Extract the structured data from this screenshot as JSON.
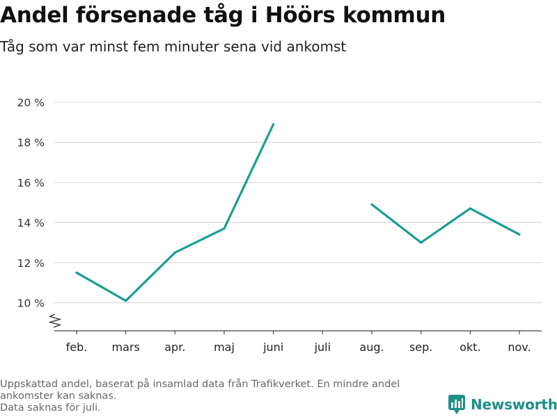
{
  "header": {
    "title": "Andel försenade tåg i Höörs kommun",
    "subtitle": "Tåg som var minst fem minuter sena vid ankomst"
  },
  "chart_data": {
    "type": "line",
    "title": "Andel försenade tåg i Höörs kommun",
    "subtitle": "Tåg som var minst fem minuter sena vid ankomst",
    "categories": [
      "feb.",
      "mars",
      "apr.",
      "maj",
      "juni",
      "juli",
      "aug.",
      "sep.",
      "okt.",
      "nov."
    ],
    "series": [
      {
        "values": [
          11.5,
          10.1,
          12.5,
          13.7,
          18.9,
          null,
          14.9,
          13.0,
          14.7,
          13.4
        ]
      }
    ],
    "yticks": [
      10,
      12,
      14,
      16,
      18,
      20
    ],
    "ytick_suffix": " %",
    "ylim": [
      8.6,
      20
    ],
    "axis_break": true,
    "grid": true,
    "line_color": "#1a9e8f",
    "grid_color": "#d9d9d9"
  },
  "footer": {
    "notes": [
      "Uppskattad andel, baserat på insamlad data från Trafikverket. En mindre andel ankomster kan saknas.",
      "Data saknas för juli."
    ],
    "brand": "Newsworthy",
    "brand_color": "#1f8f86"
  }
}
